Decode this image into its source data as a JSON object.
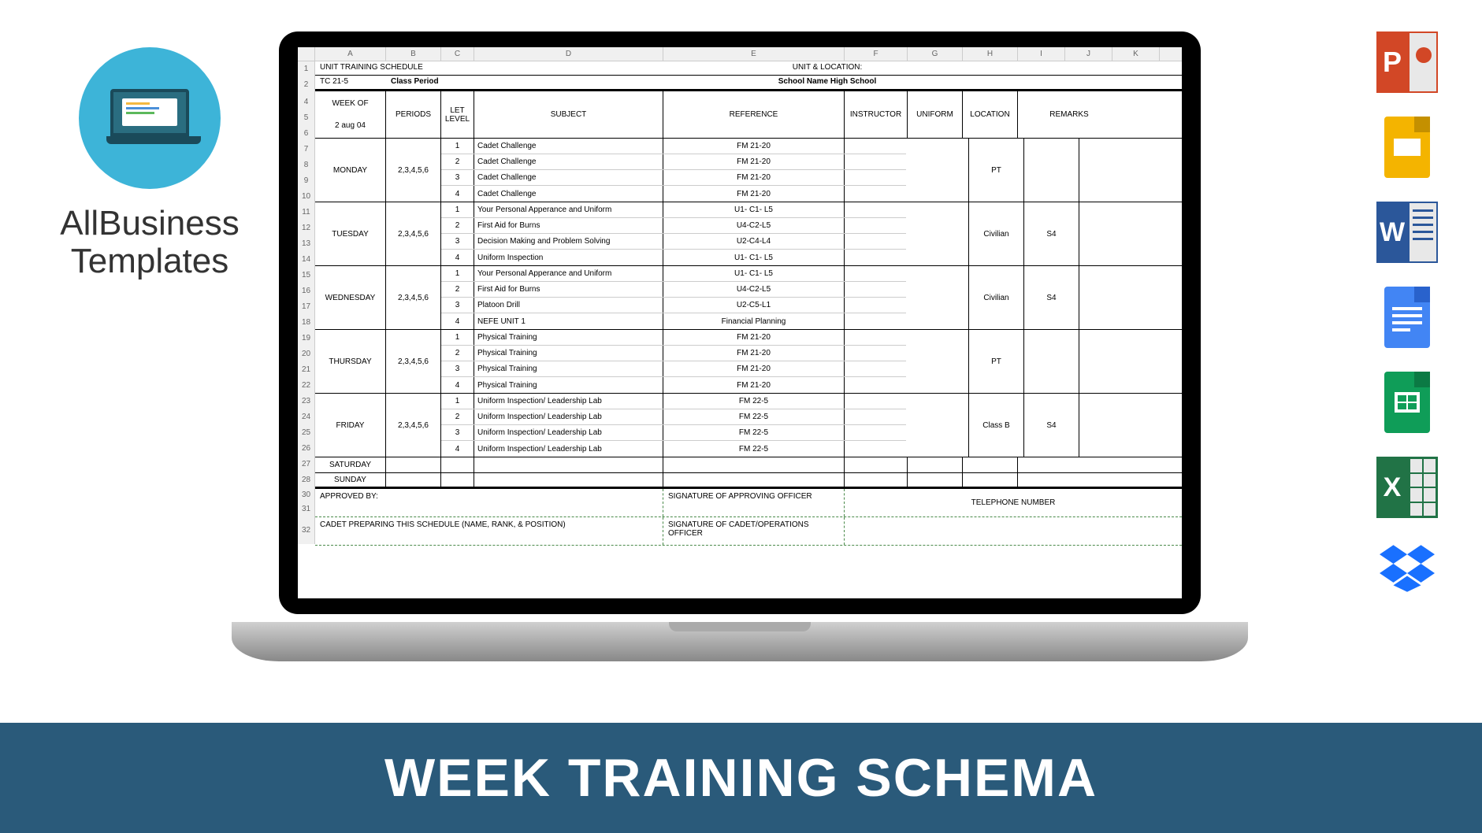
{
  "logo": {
    "line1": "AllBusiness",
    "line2": "Templates"
  },
  "banner": "WEEK TRAINING SCHEMA",
  "sheet": {
    "columns": [
      "A",
      "B",
      "C",
      "D",
      "E",
      "F",
      "G",
      "H",
      "I",
      "J",
      "K"
    ],
    "title_left": "UNIT TRAINING SCHEDULE",
    "title_right": "UNIT & LOCATION:",
    "row2_left": "TC 21-5",
    "row2_mid": "Class Period",
    "row2_right": "School Name High School",
    "headers": {
      "week_of": "WEEK OF",
      "week_date": "2 aug 04",
      "periods": "PERIODS",
      "let_level": "LET LEVEL",
      "subject": "SUBJECT",
      "reference": "REFERENCE",
      "instructor": "INSTRUCTOR",
      "uniform": "UNIFORM",
      "location": "LOCATION",
      "remarks": "REMARKS"
    },
    "days": [
      {
        "name": "MONDAY",
        "periods": "2,3,4,5,6",
        "uniform": "PT",
        "location": "",
        "rows": [
          {
            "let": "1",
            "subject": "Cadet Challenge",
            "ref": "FM 21-20"
          },
          {
            "let": "2",
            "subject": "Cadet Challenge",
            "ref": "FM 21-20"
          },
          {
            "let": "3",
            "subject": "Cadet Challenge",
            "ref": "FM 21-20"
          },
          {
            "let": "4",
            "subject": "Cadet Challenge",
            "ref": "FM 21-20"
          }
        ]
      },
      {
        "name": "TUESDAY",
        "periods": "2,3,4,5,6",
        "uniform": "Civilian",
        "location": "S4",
        "rows": [
          {
            "let": "1",
            "subject": "Your Personal Apperance and Uniform",
            "ref": "U1- C1- L5"
          },
          {
            "let": "2",
            "subject": "First Aid for Burns",
            "ref": "U4-C2-L5"
          },
          {
            "let": "3",
            "subject": "Decision Making and Problem Solving",
            "ref": "U2-C4-L4"
          },
          {
            "let": "4",
            "subject": "Uniform Inspection",
            "ref": "U1- C1- L5"
          }
        ]
      },
      {
        "name": "WEDNESDAY",
        "periods": "2,3,4,5,6",
        "uniform": "Civilian",
        "location": "S4",
        "rows": [
          {
            "let": "1",
            "subject": "Your Personal Apperance and Uniform",
            "ref": "U1- C1- L5"
          },
          {
            "let": "2",
            "subject": "First Aid for Burns",
            "ref": "U4-C2-L5"
          },
          {
            "let": "3",
            "subject": "Platoon Drill",
            "ref": "U2-C5-L1"
          },
          {
            "let": "4",
            "subject": "NEFE UNIT 1",
            "ref": "Financial Planning"
          }
        ]
      },
      {
        "name": "THURSDAY",
        "periods": "2,3,4,5,6",
        "uniform": "PT",
        "location": "",
        "rows": [
          {
            "let": "1",
            "subject": "Physical Training",
            "ref": "FM 21-20"
          },
          {
            "let": "2",
            "subject": "Physical Training",
            "ref": "FM 21-20"
          },
          {
            "let": "3",
            "subject": "Physical Training",
            "ref": "FM 21-20"
          },
          {
            "let": "4",
            "subject": "Physical Training",
            "ref": "FM 21-20"
          }
        ]
      },
      {
        "name": "FRIDAY",
        "periods": "2,3,4,5,6",
        "uniform": "Class B",
        "location": "S4",
        "rows": [
          {
            "let": "1",
            "subject": "Uniform Inspection/ Leadership Lab",
            "ref": "FM 22-5"
          },
          {
            "let": "2",
            "subject": "Uniform Inspection/ Leadership Lab",
            "ref": "FM 22-5"
          },
          {
            "let": "3",
            "subject": "Uniform Inspection/ Leadership Lab",
            "ref": "FM 22-5"
          },
          {
            "let": "4",
            "subject": "Uniform Inspection/ Leadership Lab",
            "ref": "FM 22-5"
          }
        ]
      }
    ],
    "weekend": [
      "SATURDAY",
      "SUNDAY"
    ],
    "footer": {
      "approved": "APPROVED BY:",
      "sig_approving": "SIGNATURE OF APPROVING OFFICER",
      "cadet_prep": "CADET PREPARING THIS SCHEDULE (NAME, RANK, & POSITION)",
      "sig_cadet": "SIGNATURE OF CADET/OPERATIONS OFFICER",
      "telephone": "TELEPHONE NUMBER"
    }
  },
  "icons": {
    "powerpoint": "P",
    "word": "W",
    "excel": "X"
  },
  "colors": {
    "banner_bg": "#2a5a7a",
    "logo_circle": "#3db4d8"
  }
}
